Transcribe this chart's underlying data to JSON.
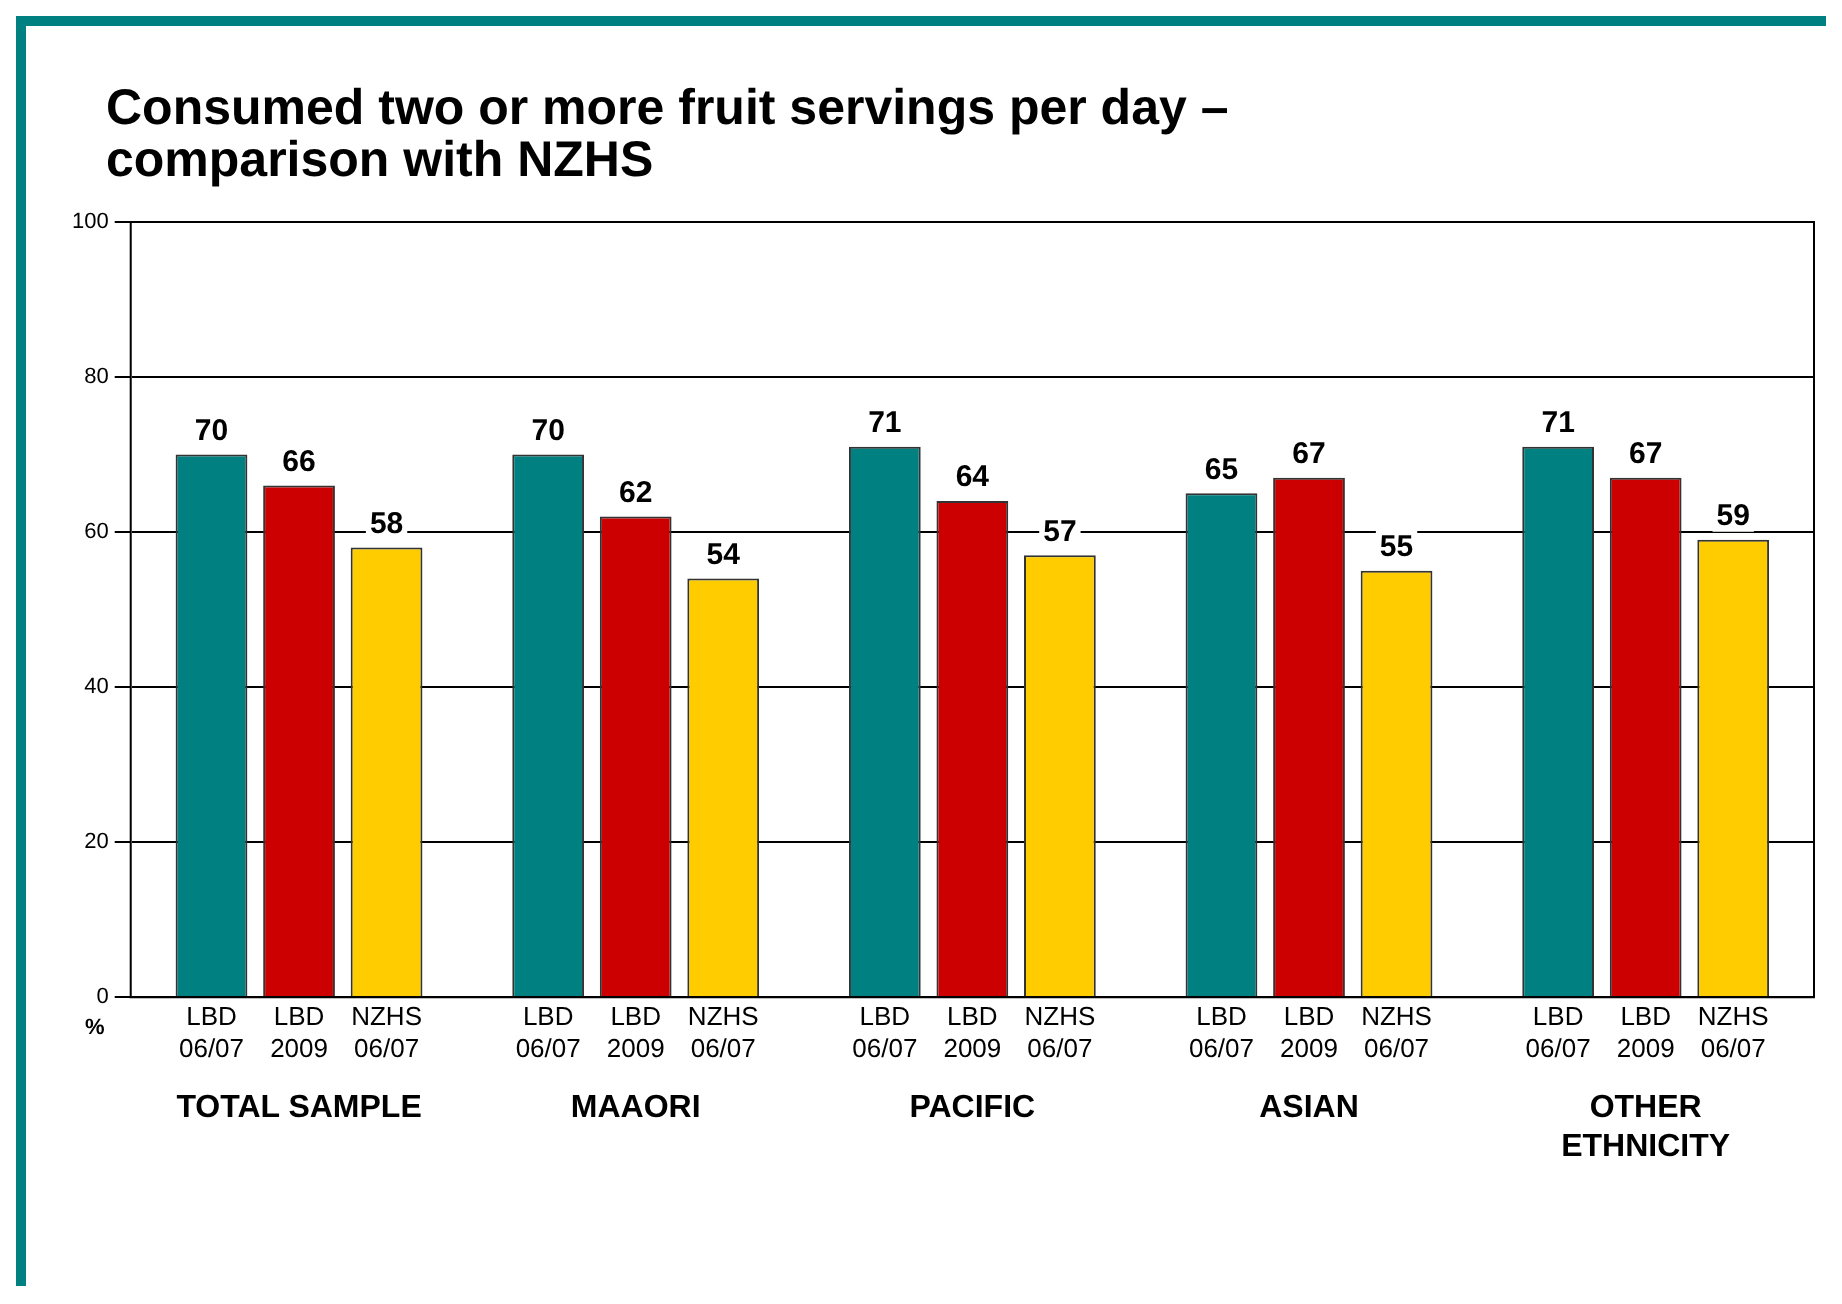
{
  "chart_data": {
    "type": "bar",
    "title": "Consumed two or more fruit servings per day – comparison with NZHS",
    "ylabel": "%",
    "categories": [
      "TOTAL SAMPLE",
      "MAAORI",
      "PACIFIC",
      "ASIAN",
      "OTHER ETHNICITY"
    ],
    "series": [
      {
        "name": "LBD 06/07",
        "color": "#008080",
        "values": [
          70,
          70,
          71,
          65,
          71
        ]
      },
      {
        "name": "LBD 2009",
        "color": "#cc0000",
        "values": [
          66,
          62,
          64,
          67,
          67
        ]
      },
      {
        "name": "NZHS 06/07",
        "color": "#ffcc00",
        "values": [
          58,
          54,
          57,
          55,
          59
        ]
      }
    ],
    "ylim": [
      0,
      100
    ],
    "yticks": [
      0,
      20,
      40,
      60,
      80,
      100
    ],
    "grid": "y",
    "data_labels": true,
    "legend": false
  }
}
